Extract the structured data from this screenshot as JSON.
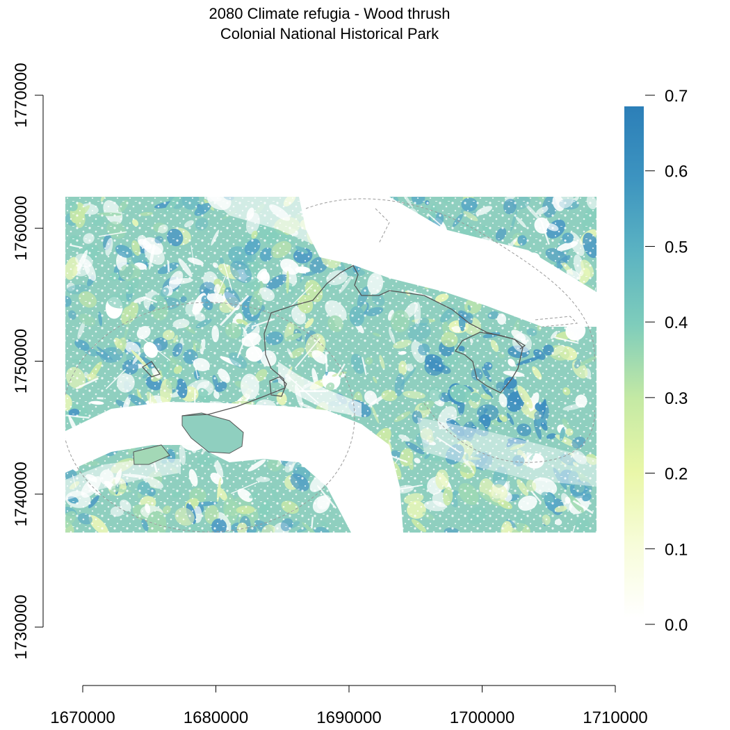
{
  "title": {
    "line1": "2080 Climate refugia - Wood thrush",
    "line2": "Colonial National Historical Park"
  },
  "x_axis": {
    "ticks": [
      1670000,
      1680000,
      1690000,
      1700000,
      1710000
    ],
    "tick_labels": [
      "1670000",
      "1680000",
      "1690000",
      "1700000",
      "1710000"
    ],
    "range": [
      1670000,
      1710000
    ]
  },
  "y_axis": {
    "ticks": [
      1730000,
      1740000,
      1750000,
      1760000,
      1770000
    ],
    "tick_labels": [
      "1730000",
      "1740000",
      "1750000",
      "1760000",
      "1770000"
    ],
    "range": [
      1730000,
      1770000
    ]
  },
  "legend": {
    "placement": "right",
    "ticks": [
      0.0,
      0.1,
      0.2,
      0.3,
      0.4,
      0.5,
      0.6,
      0.7
    ],
    "tick_labels": [
      "0.0",
      "0.1",
      "0.2",
      "0.3",
      "0.4",
      "0.5",
      "0.6",
      "0.7"
    ],
    "range": [
      0,
      0.7
    ],
    "colors": [
      "#ffffff",
      "#f7fcd9",
      "#e9f7a8",
      "#c4e9a4",
      "#7fcdbb",
      "#5bb3c2",
      "#3d94c0",
      "#2c7fb8"
    ]
  },
  "map": {
    "extent": {
      "xmin": 1669000,
      "xmax": 1709000,
      "ymin": 1737000,
      "ymax": 1762000
    },
    "park_boundary_color": "#555555",
    "water_color": "#ffffff"
  }
}
